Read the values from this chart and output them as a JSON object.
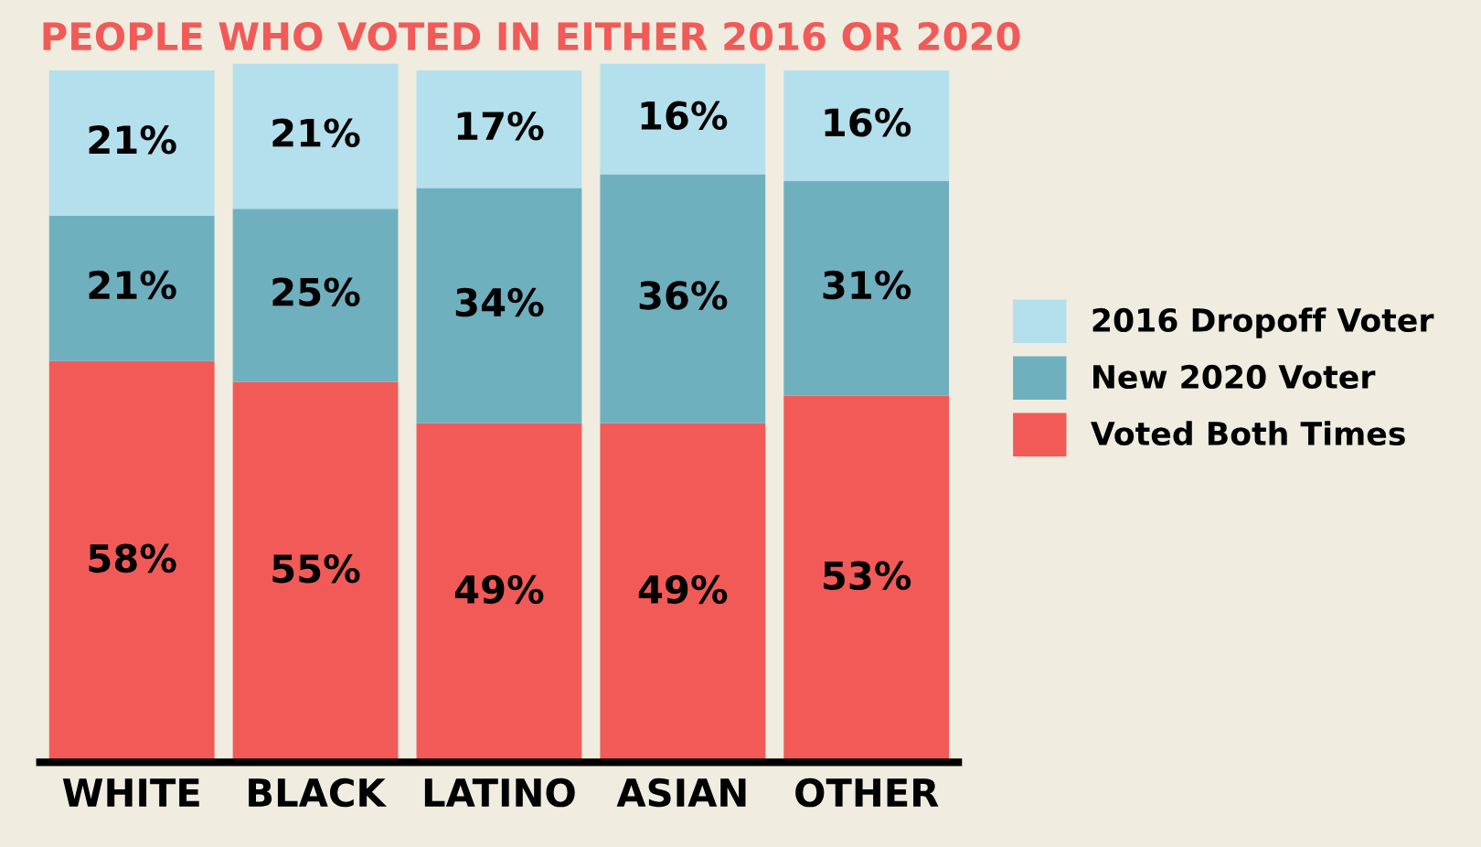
{
  "chart_data": {
    "type": "bar",
    "title": "PEOPLE WHO VOTED IN EITHER 2016 OR 2020",
    "categories": [
      "WHITE",
      "BLACK",
      "LATINO",
      "ASIAN",
      "OTHER"
    ],
    "stacked": true,
    "legend": "right",
    "grid": false,
    "series": [
      {
        "name": "Voted Both Times",
        "color": "#f25a57",
        "values": [
          58,
          55,
          49,
          49,
          53
        ],
        "value_labels": [
          "58%",
          "55%",
          "49%",
          "49%",
          "53%"
        ]
      },
      {
        "name": "New 2020 Voter",
        "color": "#6fb0bf",
        "values": [
          21,
          25,
          34,
          36,
          31
        ],
        "value_labels": [
          "21%",
          "25%",
          "34%",
          "36%",
          "31%"
        ]
      },
      {
        "name": "2016 Dropoff Voter",
        "color": "#b3e0ec",
        "values": [
          21,
          21,
          17,
          16,
          16
        ],
        "value_labels": [
          "21%",
          "21%",
          "17%",
          "16%",
          "16%"
        ]
      }
    ]
  }
}
